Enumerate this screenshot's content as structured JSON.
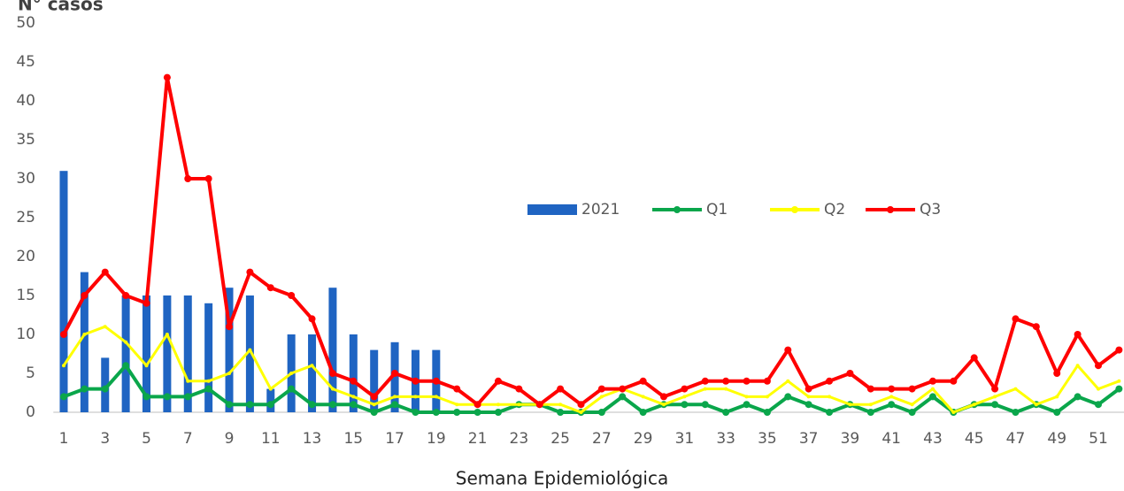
{
  "chart_data": {
    "type": "bar-line",
    "y_label": "N° casos",
    "x_label": "Semana Epidemiológica",
    "categories": [
      1,
      null,
      3,
      null,
      5,
      null,
      7,
      null,
      9,
      null,
      11,
      null,
      13,
      null,
      15,
      null,
      17,
      null,
      19,
      null,
      21,
      null,
      23,
      null,
      25,
      null,
      27,
      null,
      29,
      null,
      31,
      null,
      33,
      null,
      35,
      null,
      37,
      null,
      39,
      null,
      41,
      null,
      43,
      null,
      45,
      null,
      47,
      null,
      49,
      null,
      51,
      null
    ],
    "ylim": [
      0,
      50
    ],
    "yticks": [
      0,
      5,
      10,
      15,
      20,
      25,
      30,
      35,
      40,
      45,
      50
    ],
    "grid": false,
    "legend": "center-right",
    "series": [
      {
        "name": "2021",
        "kind": "bar",
        "color": "#1f64c2",
        "values": [
          31,
          18,
          7,
          15,
          15,
          15,
          15,
          14,
          16,
          15,
          3,
          10,
          10,
          16,
          10,
          8,
          9,
          8,
          8,
          null,
          null,
          null,
          null,
          null,
          null,
          null,
          null,
          null,
          null,
          null,
          null,
          null,
          null,
          null,
          null,
          null,
          null,
          null,
          null,
          null,
          null,
          null,
          null,
          null,
          null,
          null,
          null,
          null,
          null,
          null,
          null,
          null
        ]
      },
      {
        "name": "Q1",
        "kind": "line",
        "color": "#0aa64b",
        "values": [
          2,
          3,
          3,
          6,
          2,
          2,
          2,
          3,
          1,
          1,
          1,
          3,
          1,
          1,
          1,
          0,
          1,
          0,
          0,
          0,
          0,
          0,
          1,
          1,
          0,
          0,
          0,
          2,
          0,
          1,
          1,
          1,
          0,
          1,
          0,
          2,
          1,
          0,
          1,
          0,
          1,
          0,
          2,
          0,
          1,
          1,
          0,
          1,
          0,
          2,
          1,
          3
        ]
      },
      {
        "name": "Q2",
        "kind": "line",
        "color": "#ffff00",
        "values": [
          6,
          10,
          11,
          9,
          6,
          10,
          4,
          4,
          5,
          8,
          3,
          5,
          6,
          3,
          2,
          1,
          2,
          2,
          2,
          1,
          1,
          1,
          1,
          1,
          1,
          0,
          2,
          3,
          2,
          1,
          2,
          3,
          3,
          2,
          2,
          4,
          2,
          2,
          1,
          1,
          2,
          1,
          3,
          0,
          1,
          2,
          3,
          1,
          2,
          6,
          3,
          4
        ]
      },
      {
        "name": "Q3",
        "kind": "line",
        "color": "#ff0000",
        "values": [
          10,
          15,
          18,
          15,
          14,
          43,
          30,
          30,
          11,
          18,
          16,
          15,
          12,
          5,
          4,
          2,
          5,
          4,
          4,
          3,
          1,
          4,
          3,
          1,
          3,
          1,
          3,
          3,
          4,
          2,
          3,
          4,
          4,
          4,
          4,
          8,
          3,
          4,
          5,
          3,
          3,
          3,
          4,
          4,
          7,
          3,
          12,
          11,
          5,
          10,
          6,
          8
        ]
      }
    ]
  }
}
